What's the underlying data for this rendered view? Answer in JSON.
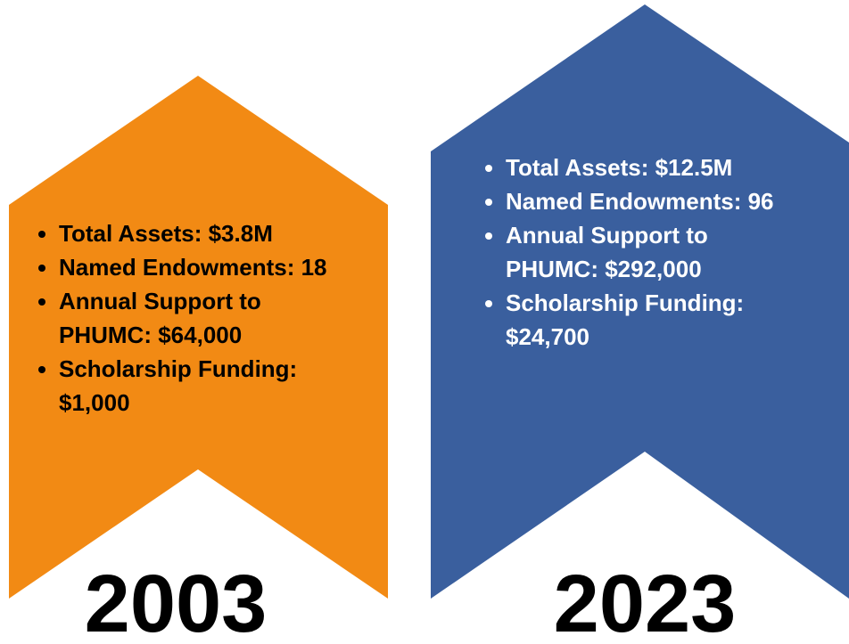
{
  "panels": [
    {
      "year": "2003",
      "color": "#f28a14",
      "items": [
        "Total Assets: $3.8M",
        "Named Endowments: 18",
        "Annual Support to PHUMC: $64,000",
        "Scholarship Funding: $1,000"
      ]
    },
    {
      "year": "2023",
      "color": "#3a5f9e",
      "items": [
        "Total Assets: $12.5M",
        "Named Endowments: 96",
        "Annual Support to PHUMC: $292,000",
        "Scholarship Funding: $24,700"
      ]
    }
  ]
}
